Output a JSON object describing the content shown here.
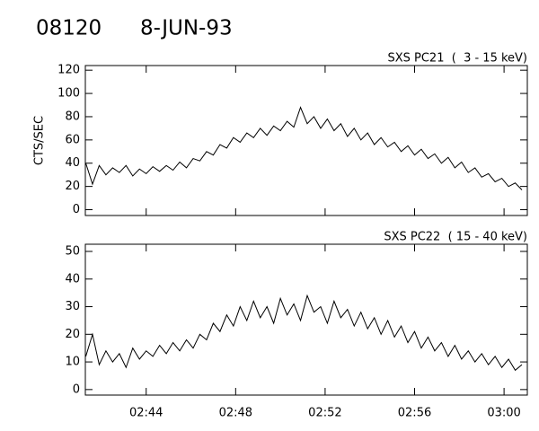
{
  "header": {
    "id": "08120",
    "date": "8-JUN-93"
  },
  "chart_data": [
    {
      "type": "line",
      "title": "SXS PC21  (  3 - 15 keV)",
      "y_label": "CTS/SEC",
      "xlim": [
        161.28,
        181.04
      ],
      "ylim": [
        -5,
        124
      ],
      "yticks": [
        0,
        20,
        40,
        60,
        80,
        100,
        120
      ],
      "series": [
        {
          "color": "#000000",
          "x": [
            161.3,
            161.6,
            161.9,
            162.2,
            162.5,
            162.8,
            163.1,
            163.4,
            163.7,
            164.0,
            164.3,
            164.6,
            164.9,
            165.2,
            165.5,
            165.8,
            166.1,
            166.4,
            166.7,
            167.0,
            167.3,
            167.6,
            167.9,
            168.2,
            168.5,
            168.8,
            169.1,
            169.4,
            169.7,
            170.0,
            170.3,
            170.6,
            170.9,
            171.2,
            171.5,
            171.8,
            172.1,
            172.4,
            172.7,
            173.0,
            173.3,
            173.6,
            173.9,
            174.2,
            174.5,
            174.8,
            175.1,
            175.4,
            175.7,
            176.0,
            176.3,
            176.6,
            176.9,
            177.2,
            177.5,
            177.8,
            178.1,
            178.4,
            178.7,
            179.0,
            179.3,
            179.6,
            179.9,
            180.2,
            180.5,
            180.8
          ],
          "values": [
            40,
            22,
            38,
            30,
            36,
            32,
            38,
            29,
            35,
            31,
            37,
            33,
            38,
            34,
            41,
            36,
            44,
            42,
            50,
            47,
            56,
            53,
            62,
            58,
            66,
            62,
            70,
            64,
            72,
            68,
            76,
            71,
            88,
            74,
            80,
            70,
            78,
            68,
            74,
            63,
            70,
            60,
            66,
            56,
            62,
            54,
            58,
            50,
            55,
            47,
            52,
            44,
            48,
            40,
            45,
            36,
            41,
            32,
            36,
            28,
            31,
            24,
            27,
            20,
            23,
            17
          ]
        }
      ]
    },
    {
      "type": "line",
      "title": "SXS PC22  ( 15 - 40 keV)",
      "xlim": [
        161.28,
        181.04
      ],
      "ylim": [
        -2,
        52.6
      ],
      "yticks": [
        0,
        10,
        20,
        30,
        40,
        50
      ],
      "xticks": [
        {
          "value": 164,
          "label": "02:44"
        },
        {
          "value": 168,
          "label": "02:48"
        },
        {
          "value": 172,
          "label": "02:52"
        },
        {
          "value": 176,
          "label": "02:56"
        },
        {
          "value": 180,
          "label": "03:00"
        }
      ],
      "series": [
        {
          "color": "#000000",
          "x": [
            161.3,
            161.6,
            161.9,
            162.2,
            162.5,
            162.8,
            163.1,
            163.4,
            163.7,
            164.0,
            164.3,
            164.6,
            164.9,
            165.2,
            165.5,
            165.8,
            166.1,
            166.4,
            166.7,
            167.0,
            167.3,
            167.6,
            167.9,
            168.2,
            168.5,
            168.8,
            169.1,
            169.4,
            169.7,
            170.0,
            170.3,
            170.6,
            170.9,
            171.2,
            171.5,
            171.8,
            172.1,
            172.4,
            172.7,
            173.0,
            173.3,
            173.6,
            173.9,
            174.2,
            174.5,
            174.8,
            175.1,
            175.4,
            175.7,
            176.0,
            176.3,
            176.6,
            176.9,
            177.2,
            177.5,
            177.8,
            178.1,
            178.4,
            178.7,
            179.0,
            179.3,
            179.6,
            179.9,
            180.2,
            180.5,
            180.8
          ],
          "values": [
            12,
            20,
            9,
            14,
            10,
            13,
            8,
            15,
            11,
            14,
            12,
            16,
            13,
            17,
            14,
            18,
            15,
            20,
            18,
            24,
            21,
            27,
            23,
            30,
            25,
            32,
            26,
            30,
            24,
            33,
            27,
            31,
            25,
            34,
            28,
            30,
            24,
            32,
            26,
            29,
            23,
            28,
            22,
            26,
            20,
            25,
            19,
            23,
            17,
            21,
            15,
            19,
            14,
            17,
            12,
            16,
            11,
            14,
            10,
            13,
            9,
            12,
            8,
            11,
            7,
            9
          ]
        }
      ]
    }
  ]
}
